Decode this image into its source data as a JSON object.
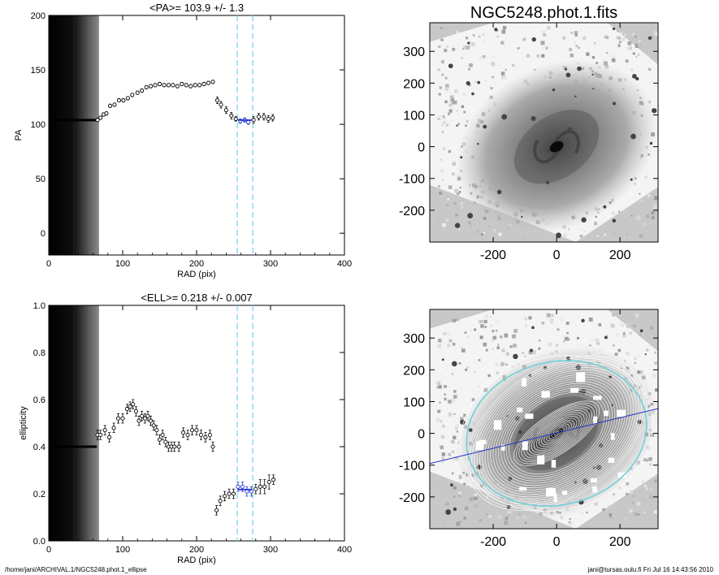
{
  "chart_data": [
    {
      "type": "scatter",
      "title": "<PA>= 103.9 +/-   1.3",
      "xlabel": "RAD (pix)",
      "ylabel": "PA",
      "xlim": [
        0,
        400
      ],
      "ylim": [
        -20,
        200
      ],
      "xticks": [
        0,
        100,
        200,
        300,
        400
      ],
      "yticks": [
        0,
        50,
        100,
        150,
        200
      ],
      "band_xmax": 68,
      "vlines": [
        255,
        276
      ],
      "flat_segment": {
        "x0": 0,
        "x1": 65,
        "y": 103.9
      },
      "fit_segment": {
        "x0": 256,
        "x1": 275,
        "y": 103.9
      },
      "points": [
        [
          66,
          104,
          1.5
        ],
        [
          70,
          106,
          1.5
        ],
        [
          74,
          109,
          1.5
        ],
        [
          78,
          110,
          1.5
        ],
        [
          83,
          117,
          1.5
        ],
        [
          89,
          118,
          1.5
        ],
        [
          95,
          122,
          1.5
        ],
        [
          101,
          122,
          1.5
        ],
        [
          107,
          124,
          1.5
        ],
        [
          113,
          127,
          1.5
        ],
        [
          120,
          129,
          1.5
        ],
        [
          126,
          131,
          1.5
        ],
        [
          132,
          134,
          1.5
        ],
        [
          138,
          135,
          1.5
        ],
        [
          144,
          136,
          1.5
        ],
        [
          150,
          137,
          1.5
        ],
        [
          156,
          136,
          1.5
        ],
        [
          162,
          136,
          1.5
        ],
        [
          168,
          136,
          1.5
        ],
        [
          174,
          135,
          1.5
        ],
        [
          180,
          137,
          1.5
        ],
        [
          186,
          136,
          1.5
        ],
        [
          192,
          135,
          1.5
        ],
        [
          198,
          136,
          1.5
        ],
        [
          204,
          136,
          1.5
        ],
        [
          210,
          137,
          1.5
        ],
        [
          216,
          138,
          1.5
        ],
        [
          222,
          139,
          1.5
        ],
        [
          228,
          122,
          3
        ],
        [
          233,
          118,
          3
        ],
        [
          240,
          113,
          3
        ],
        [
          247,
          108,
          3
        ],
        [
          253,
          105,
          2
        ],
        [
          259,
          103,
          2
        ],
        [
          265,
          104,
          2
        ],
        [
          270,
          102,
          2
        ],
        [
          277,
          104,
          3
        ],
        [
          284,
          107,
          3
        ],
        [
          291,
          107,
          3
        ],
        [
          297,
          105,
          3
        ],
        [
          303,
          106,
          3
        ]
      ]
    },
    {
      "type": "scatter",
      "title": "<ELL>= 0.218 +/-  0.007",
      "xlabel": "RAD (pix)",
      "ylabel": "ellipticity",
      "xlim": [
        0,
        400
      ],
      "ylim": [
        0.0,
        1.0
      ],
      "xticks": [
        0,
        100,
        200,
        300,
        400
      ],
      "yticks": [
        0.0,
        0.2,
        0.4,
        0.6,
        0.8,
        1.0
      ],
      "band_xmax": 68,
      "vlines": [
        255,
        276
      ],
      "flat_segment": {
        "x0": 0,
        "x1": 65,
        "y": 0.4
      },
      "fit_segment": {
        "x0": 256,
        "x1": 275,
        "y": 0.218
      },
      "points": [
        [
          66,
          0.45,
          0.02
        ],
        [
          70,
          0.45,
          0.02
        ],
        [
          76,
          0.47,
          0.02
        ],
        [
          82,
          0.44,
          0.02
        ],
        [
          88,
          0.48,
          0.02
        ],
        [
          94,
          0.52,
          0.02
        ],
        [
          100,
          0.52,
          0.02
        ],
        [
          106,
          0.56,
          0.02
        ],
        [
          110,
          0.57,
          0.02
        ],
        [
          114,
          0.58,
          0.02
        ],
        [
          118,
          0.55,
          0.02
        ],
        [
          122,
          0.51,
          0.02
        ],
        [
          126,
          0.53,
          0.02
        ],
        [
          130,
          0.52,
          0.02
        ],
        [
          134,
          0.53,
          0.02
        ],
        [
          138,
          0.51,
          0.02
        ],
        [
          142,
          0.49,
          0.02
        ],
        [
          146,
          0.47,
          0.02
        ],
        [
          150,
          0.43,
          0.02
        ],
        [
          154,
          0.45,
          0.02
        ],
        [
          158,
          0.42,
          0.02
        ],
        [
          162,
          0.4,
          0.02
        ],
        [
          166,
          0.4,
          0.02
        ],
        [
          170,
          0.4,
          0.02
        ],
        [
          176,
          0.4,
          0.02
        ],
        [
          182,
          0.46,
          0.02
        ],
        [
          188,
          0.45,
          0.02
        ],
        [
          194,
          0.47,
          0.02
        ],
        [
          200,
          0.47,
          0.02
        ],
        [
          206,
          0.45,
          0.02
        ],
        [
          212,
          0.44,
          0.02
        ],
        [
          218,
          0.45,
          0.02
        ],
        [
          222,
          0.4,
          0.02
        ],
        [
          227,
          0.13,
          0.02
        ],
        [
          232,
          0.17,
          0.02
        ],
        [
          238,
          0.19,
          0.02
        ],
        [
          244,
          0.2,
          0.02
        ],
        [
          250,
          0.2,
          0.02
        ],
        [
          256,
          0.23,
          0.02
        ],
        [
          262,
          0.23,
          0.02
        ],
        [
          268,
          0.21,
          0.02
        ],
        [
          274,
          0.21,
          0.02
        ],
        [
          280,
          0.22,
          0.02
        ],
        [
          286,
          0.23,
          0.03
        ],
        [
          292,
          0.23,
          0.03
        ],
        [
          298,
          0.25,
          0.03
        ],
        [
          304,
          0.26,
          0.02
        ]
      ]
    },
    {
      "type": "heatmap",
      "title": "NGC5248.phot.1.fits",
      "xlim": [
        -400,
        320
      ],
      "ylim": [
        -300,
        390
      ],
      "xticks": [
        -200,
        0,
        200
      ],
      "yticks": [
        -200,
        -100,
        0,
        100,
        200,
        300
      ],
      "overlay_ellipses": false
    },
    {
      "type": "heatmap",
      "title": "",
      "xlim": [
        -400,
        320
      ],
      "ylim": [
        -300,
        390
      ],
      "xticks": [
        -200,
        0,
        200
      ],
      "yticks": [
        -200,
        -100,
        0,
        100,
        200,
        300
      ],
      "overlay_ellipses": true,
      "major_axis_pa": 103.9
    }
  ],
  "footer": {
    "left": "/home/jani/ARCHIVAL.1/NGC5248.phot.1_ellipse",
    "right": "jani@tursas.oulu.fi  Fri Jul 16 14:43:56 2010"
  },
  "colors": {
    "fit": "#2233cc",
    "vline": "#7fdde6",
    "ellipse": "#ffffff",
    "outer_ellipse": "#6fd0d8",
    "sky": "#c8c8c8"
  }
}
